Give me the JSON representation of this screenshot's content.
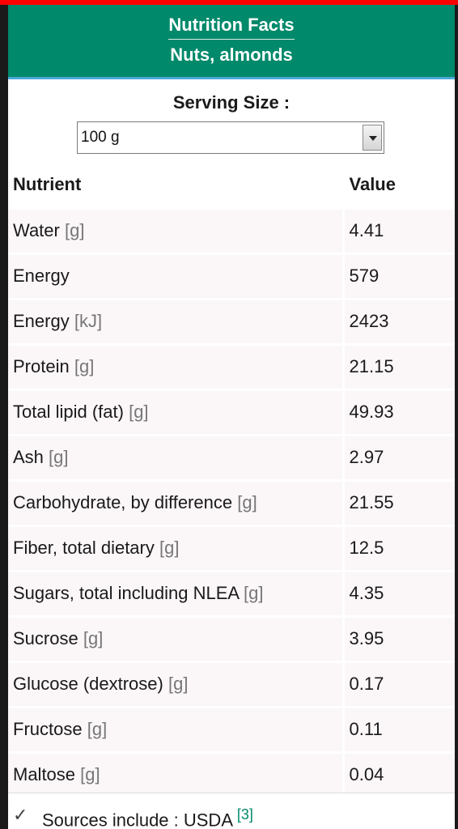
{
  "header": {
    "title": "Nutrition Facts",
    "subtitle": "Nuts, almonds"
  },
  "serving": {
    "label": "Serving Size :",
    "selected": "100 g"
  },
  "table": {
    "headers": {
      "nutrient": "Nutrient",
      "value": "Value"
    },
    "rows": [
      {
        "name": "Water",
        "unit": "[g]",
        "value": "4.41"
      },
      {
        "name": "Energy",
        "unit": "",
        "value": "579"
      },
      {
        "name": "Energy",
        "unit": "[kJ]",
        "value": "2423"
      },
      {
        "name": "Protein",
        "unit": "[g]",
        "value": "21.15"
      },
      {
        "name": "Total lipid (fat)",
        "unit": "[g]",
        "value": "49.93"
      },
      {
        "name": "Ash",
        "unit": "[g]",
        "value": "2.97"
      },
      {
        "name": "Carbohydrate, by difference",
        "unit": "[g]",
        "value": "21.55"
      },
      {
        "name": "Fiber, total dietary",
        "unit": "[g]",
        "value": "12.5"
      },
      {
        "name": "Sugars, total including NLEA",
        "unit": "[g]",
        "value": "4.35"
      },
      {
        "name": "Sucrose",
        "unit": "[g]",
        "value": "3.95"
      },
      {
        "name": "Glucose (dextrose)",
        "unit": "[g]",
        "value": "0.17"
      },
      {
        "name": "Fructose",
        "unit": "[g]",
        "value": "0.11"
      },
      {
        "name": "Maltose",
        "unit": "[g]",
        "value": "0.04"
      }
    ]
  },
  "footer": {
    "icon": "check-icon",
    "text": "Sources include : USDA",
    "ref": "[3]"
  },
  "colors": {
    "header_bg": "#00896a",
    "accent_line": "#4aa8d8",
    "top_bar": "#ff0000",
    "row_bg": "#fbf6f8"
  }
}
